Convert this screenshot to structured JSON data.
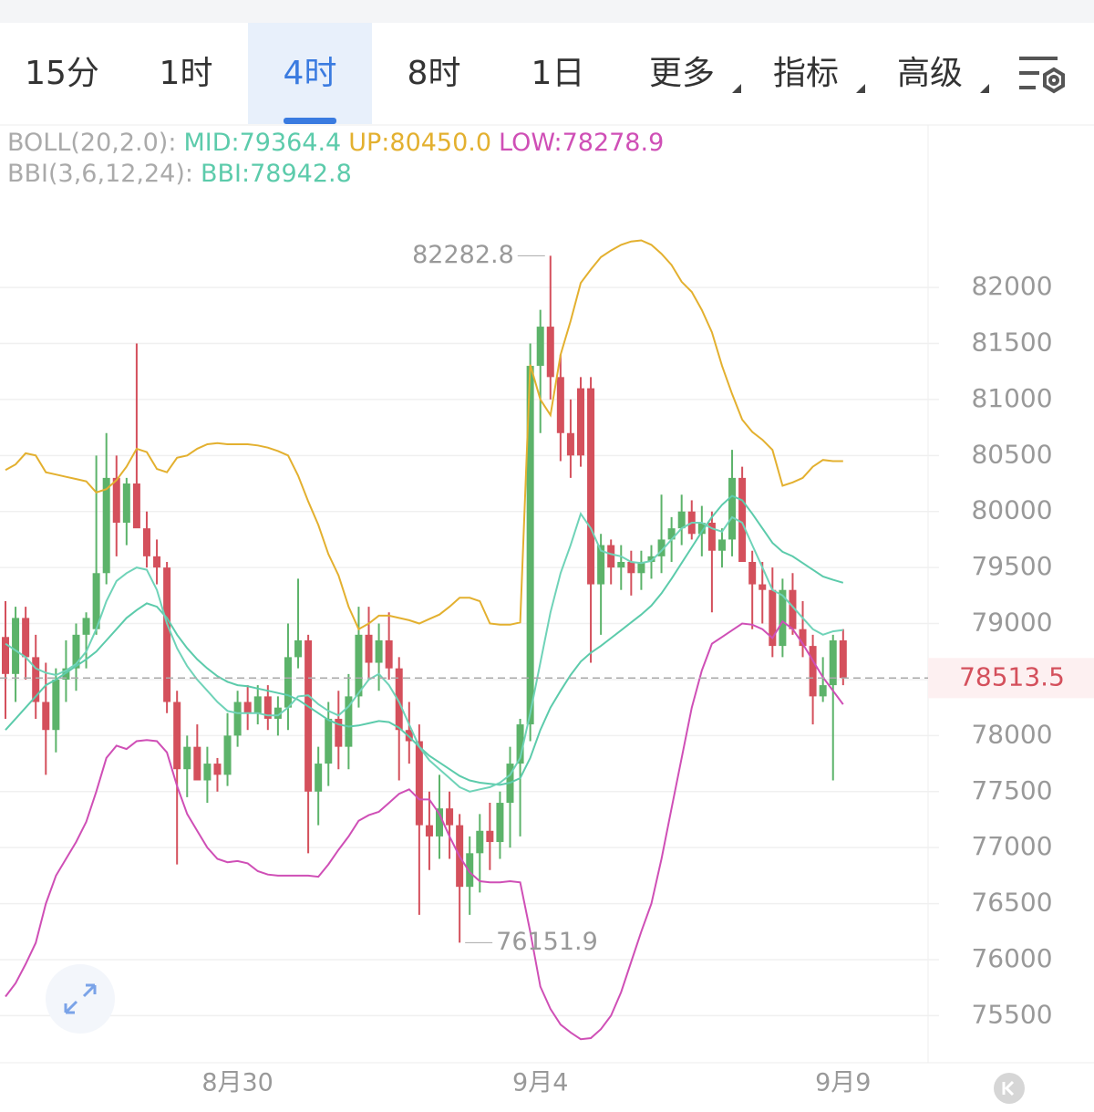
{
  "tabs": [
    {
      "label": "15分"
    },
    {
      "label": "1时"
    },
    {
      "label": "4时",
      "active": true
    },
    {
      "label": "8时"
    },
    {
      "label": "1日"
    },
    {
      "label": "更多",
      "dropdown": true
    },
    {
      "label": "指标",
      "dropdown": true
    },
    {
      "label": "高级",
      "dropdown": true
    }
  ],
  "indicators": [
    [
      {
        "text": "BOLL(20,2.0):",
        "color": "#aaaaaa"
      },
      {
        "text": "MID:79364.4",
        "color": "#5ccbab"
      },
      {
        "text": "UP:80450.0",
        "color": "#e3b02f"
      },
      {
        "text": "LOW:78278.9",
        "color": "#cf4fb6"
      }
    ],
    [
      {
        "text": "BBI(3,6,12,24):",
        "color": "#aaaaaa"
      },
      {
        "text": "BBI:78942.8",
        "color": "#5ccbab"
      }
    ]
  ],
  "chart_data": {
    "type": "candlestick",
    "categories": [
      null,
      null,
      null,
      null,
      null,
      null,
      null,
      null,
      null,
      null,
      null,
      null,
      null,
      null,
      null,
      null,
      null,
      null,
      null,
      null,
      null,
      null,
      null,
      "8月30",
      null,
      null,
      null,
      null,
      null,
      null,
      null,
      null,
      null,
      null,
      null,
      null,
      null,
      null,
      null,
      null,
      null,
      null,
      null,
      null,
      null,
      null,
      null,
      null,
      null,
      null,
      null,
      null,
      null,
      "9月4",
      null,
      null,
      null,
      null,
      null,
      null,
      null,
      null,
      null,
      null,
      null,
      null,
      null,
      null,
      null,
      null,
      null,
      null,
      null,
      null,
      null,
      null,
      null,
      null,
      null,
      null,
      null,
      null,
      null,
      "9月9"
    ],
    "open": [
      78880,
      78550,
      79050,
      78700,
      78300,
      78050,
      78500,
      78600,
      78900,
      78950,
      79450,
      80300,
      79900,
      80250,
      79850,
      79600,
      79500,
      78300,
      77700,
      77900,
      77600,
      77750,
      77650,
      78000,
      78300,
      78200,
      78350,
      78150,
      78250,
      78700,
      78850,
      77500,
      77750,
      78150,
      77900,
      78350,
      78900,
      78650,
      78850,
      78600,
      78050,
      77950,
      77200,
      77100,
      77350,
      77200,
      76650,
      76950,
      77150,
      77050,
      77400,
      77750,
      78100,
      81300,
      81650,
      81200,
      80700,
      81100,
      81100,
      79350,
      79700,
      79500,
      79550,
      79450,
      79550,
      79600,
      79750,
      79850,
      80000,
      79800,
      79900,
      79650,
      79750,
      80300,
      79550,
      79350,
      79300,
      78800,
      79300,
      78950,
      78800,
      78350,
      78450,
      78850
    ],
    "high": [
      79200,
      79150,
      79150,
      78900,
      78650,
      78600,
      78850,
      79000,
      79100,
      80500,
      80700,
      80500,
      80300,
      81500,
      80000,
      79750,
      79550,
      78400,
      78000,
      78100,
      77900,
      77800,
      78200,
      78400,
      78450,
      78450,
      78450,
      78350,
      79000,
      79400,
      78900,
      77900,
      78300,
      78400,
      78550,
      79150,
      79150,
      79000,
      79100,
      78700,
      78300,
      78100,
      77500,
      77650,
      77500,
      77300,
      77100,
      77300,
      77400,
      77500,
      77900,
      78150,
      81500,
      81800,
      82282.8,
      81400,
      81000,
      81200,
      81200,
      79800,
      79750,
      79700,
      79650,
      79650,
      79700,
      80150,
      79950,
      80150,
      80100,
      80050,
      80000,
      79850,
      80550,
      80400,
      79650,
      79550,
      79500,
      79400,
      79450,
      79200,
      78900,
      78700,
      78900,
      78950
    ],
    "low": [
      78150,
      78300,
      78500,
      78150,
      77650,
      77850,
      78300,
      78400,
      78600,
      78900,
      79350,
      79600,
      79700,
      79900,
      79500,
      79350,
      78200,
      76850,
      77450,
      77600,
      77400,
      77500,
      77550,
      77900,
      78050,
      78100,
      78050,
      78000,
      78050,
      78600,
      76950,
      77200,
      77550,
      77700,
      77700,
      78250,
      78500,
      78400,
      78500,
      77600,
      77750,
      76400,
      76800,
      76900,
      76900,
      76151.9,
      76400,
      76600,
      76800,
      76900,
      77000,
      77100,
      77950,
      80700,
      81000,
      80450,
      80300,
      80400,
      78650,
      78900,
      79350,
      79300,
      79250,
      79300,
      79400,
      79450,
      79550,
      79700,
      79750,
      79600,
      79100,
      79500,
      79600,
      79550,
      78950,
      79000,
      78700,
      78700,
      78900,
      78700,
      78100,
      78300,
      77600,
      78450
    ],
    "close": [
      78550,
      79050,
      78700,
      78300,
      78050,
      78500,
      78600,
      78900,
      79050,
      79450,
      80300,
      79900,
      80250,
      79850,
      79600,
      79500,
      78300,
      77700,
      77900,
      77600,
      77750,
      77650,
      78000,
      78300,
      78200,
      78350,
      78150,
      78250,
      78700,
      78850,
      77500,
      77750,
      78150,
      77900,
      78350,
      78900,
      78650,
      78850,
      78600,
      78050,
      77950,
      77200,
      77100,
      77350,
      77200,
      76650,
      76950,
      77150,
      77050,
      77400,
      77750,
      78100,
      81300,
      81650,
      81200,
      80700,
      80500,
      80500,
      79350,
      79700,
      79500,
      79550,
      79450,
      79550,
      79600,
      79750,
      79850,
      80000,
      79800,
      79900,
      79650,
      79750,
      80300,
      79550,
      79350,
      79300,
      78800,
      79300,
      78950,
      78800,
      78350,
      78450,
      78850,
      78513.5
    ],
    "up_color": "#5cb36a",
    "down_color": "#d4505c",
    "series": [
      {
        "color": "#e3b02f",
        "values": [
          80370,
          80420,
          80520,
          80500,
          80350,
          80330,
          80310,
          80290,
          80270,
          80170,
          80200,
          80280,
          80400,
          80560,
          80530,
          80380,
          80350,
          80480,
          80500,
          80560,
          80600,
          80610,
          80600,
          80600,
          80600,
          80590,
          80570,
          80540,
          80500,
          80320,
          80090,
          79880,
          79620,
          79430,
          79150,
          78950,
          79000,
          79070,
          79070,
          79050,
          79030,
          79000,
          79040,
          79080,
          79150,
          79230,
          79230,
          79200,
          79000,
          78990,
          78990,
          79010,
          81310,
          81000,
          80860,
          81400,
          81700,
          82040,
          82160,
          82270,
          82330,
          82380,
          82410,
          82420,
          82380,
          82300,
          82200,
          82050,
          81960,
          81800,
          81600,
          81300,
          81050,
          80820,
          80710,
          80640,
          80550,
          80230,
          80260,
          80300,
          80400,
          80460,
          80450,
          80450
        ]
      },
      {
        "color": "#5ccbab",
        "values": [
          78050,
          78150,
          78250,
          78350,
          78450,
          78500,
          78560,
          78620,
          78680,
          78750,
          78850,
          78950,
          79050,
          79120,
          79180,
          79150,
          79050,
          78900,
          78780,
          78680,
          78600,
          78530,
          78480,
          78450,
          78440,
          78420,
          78400,
          78380,
          78360,
          78320,
          78260,
          78200,
          78140,
          78100,
          78080,
          78090,
          78110,
          78130,
          78120,
          78070,
          77990,
          77900,
          77820,
          77760,
          77700,
          77640,
          77600,
          77580,
          77570,
          77560,
          77580,
          77620,
          77800,
          78050,
          78250,
          78400,
          78540,
          78660,
          78740,
          78800,
          78870,
          78940,
          79010,
          79080,
          79160,
          79270,
          79400,
          79540,
          79680,
          79820,
          79950,
          80060,
          80140,
          80100,
          79980,
          79850,
          79720,
          79640,
          79600,
          79540,
          79480,
          79420,
          79390,
          79364.4
        ]
      },
      {
        "color": "#cf4fb6",
        "values": [
          75670,
          75790,
          75960,
          76150,
          76500,
          76750,
          76900,
          77050,
          77230,
          77500,
          77800,
          77910,
          77880,
          77950,
          77960,
          77950,
          77850,
          77550,
          77300,
          77150,
          77000,
          76900,
          76870,
          76880,
          76860,
          76790,
          76760,
          76750,
          76750,
          76750,
          76750,
          76740,
          76850,
          76980,
          77100,
          77240,
          77290,
          77320,
          77400,
          77480,
          77520,
          77430,
          77430,
          77300,
          77100,
          76920,
          76780,
          76700,
          76690,
          76690,
          76700,
          76690,
          76250,
          75760,
          75560,
          75420,
          75350,
          75290,
          75300,
          75380,
          75500,
          75710,
          75980,
          76250,
          76500,
          76900,
          77350,
          77800,
          78250,
          78580,
          78820,
          78880,
          78940,
          79000,
          78990,
          78950,
          78870,
          79020,
          78950,
          78820,
          78670,
          78520,
          78400,
          78278.9
        ]
      },
      {
        "color": "#6fd3b8",
        "values": [
          78820,
          78760,
          78700,
          78600,
          78560,
          78540,
          78580,
          78640,
          78750,
          78950,
          79200,
          79380,
          79450,
          79500,
          79480,
          79300,
          79000,
          78780,
          78620,
          78500,
          78400,
          78300,
          78220,
          78200,
          78200,
          78200,
          78180,
          78180,
          78250,
          78350,
          78360,
          78280,
          78220,
          78180,
          78260,
          78380,
          78500,
          78550,
          78450,
          78300,
          78100,
          77900,
          77780,
          77700,
          77620,
          77540,
          77500,
          77520,
          77540,
          77580,
          77650,
          77800,
          78200,
          78650,
          79100,
          79450,
          79700,
          79980,
          79850,
          79650,
          79620,
          79600,
          79550,
          79540,
          79560,
          79650,
          79750,
          79850,
          79900,
          79900,
          79850,
          79820,
          79950,
          79900,
          79700,
          79500,
          79300,
          79250,
          79150,
          79050,
          78950,
          78900,
          78930,
          78942.8
        ]
      }
    ],
    "ylim": [
      75080,
      83450
    ],
    "yticks": [
      75500,
      76000,
      76500,
      77000,
      77500,
      78000,
      78500,
      79000,
      79500,
      80000,
      80500,
      81000,
      81500,
      82000
    ],
    "grid": true,
    "last_price": 78513.5,
    "max_label": 82282.8,
    "min_label": 76151.9
  }
}
